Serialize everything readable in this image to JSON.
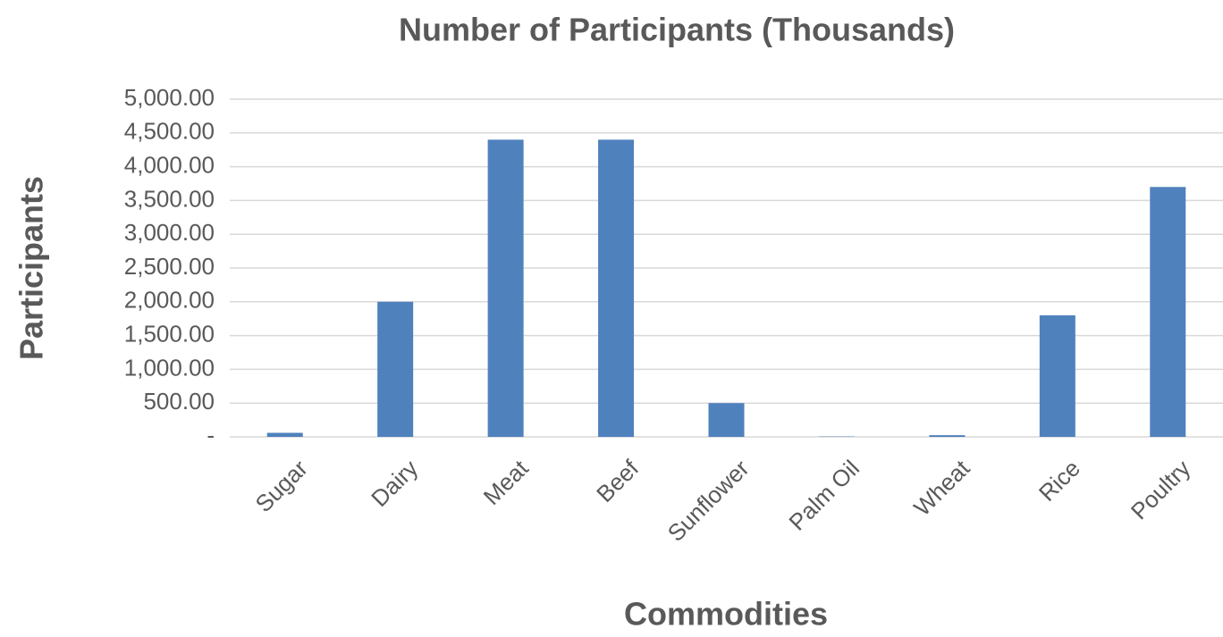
{
  "chart_data": {
    "type": "bar",
    "title": "Number of Participants (Thousands)",
    "x_label": "Commodities",
    "y_label": "Participants",
    "categories": [
      "Sugar",
      "Dairy",
      "Meat",
      "Beef",
      "Sunflower",
      "Palm Oil",
      "Wheat",
      "Rice",
      "Poultry"
    ],
    "values": [
      60,
      2000,
      4400,
      4400,
      500,
      5,
      25,
      1800,
      3700
    ],
    "color": "#4f81bd",
    "ylim": [
      0,
      5000
    ],
    "yticks": [
      {
        "value": 0,
        "label": "-"
      },
      {
        "value": 500,
        "label": "500.00"
      },
      {
        "value": 1000,
        "label": "1,000.00"
      },
      {
        "value": 1500,
        "label": "1,500.00"
      },
      {
        "value": 2000,
        "label": "2,000.00"
      },
      {
        "value": 2500,
        "label": "2,500.00"
      },
      {
        "value": 3000,
        "label": "3,000.00"
      },
      {
        "value": 3500,
        "label": "3,500.00"
      },
      {
        "value": 4000,
        "label": "4,000.00"
      },
      {
        "value": 4500,
        "label": "4,500.00"
      },
      {
        "value": 5000,
        "label": "5,000.00"
      }
    ],
    "grid": true
  }
}
